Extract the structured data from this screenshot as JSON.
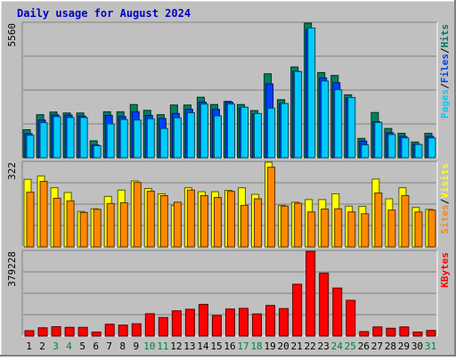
{
  "chart_data": {
    "type": "bar",
    "title": "Daily usage for August 2024",
    "categories": [
      "1",
      "2",
      "3",
      "4",
      "5",
      "6",
      "7",
      "8",
      "9",
      "10",
      "11",
      "12",
      "13",
      "14",
      "15",
      "16",
      "17",
      "18",
      "19",
      "20",
      "21",
      "22",
      "23",
      "24",
      "25",
      "26",
      "27",
      "28",
      "29",
      "30",
      "31"
    ],
    "weekend_days": [
      3,
      4,
      10,
      11,
      17,
      18,
      24,
      25,
      31
    ],
    "panels": [
      {
        "id": "hits_files_pages",
        "max_label": "5560",
        "ylim": [
          0,
          5560
        ],
        "side_labels": [
          {
            "text": "Pages",
            "color": "#00ccff"
          },
          {
            "text": "/",
            "color": "#000000"
          },
          {
            "text": "Files",
            "color": "#0044ee"
          },
          {
            "text": "/",
            "color": "#000000"
          },
          {
            "text": "Hits",
            "color": "#007766"
          }
        ],
        "series": [
          {
            "name": "Hits",
            "color": "#008060",
            "values": [
              1160,
              1780,
              1890,
              1850,
              1850,
              700,
              1900,
              1900,
              2200,
              1960,
              1780,
              2180,
              2180,
              2500,
              2200,
              2330,
              2200,
              1950,
              3470,
              2400,
              3750,
              5560,
              3520,
              3400,
              2600,
              800,
              1870,
              1210,
              1010,
              650,
              1010
            ]
          },
          {
            "name": "Files",
            "color": "#0040ff",
            "values": [
              1000,
              1560,
              1770,
              1760,
              1720,
              530,
              1750,
              1700,
              1900,
              1750,
              1620,
              1830,
              2000,
              2300,
              2000,
              2300,
              2050,
              1800,
              3050,
              2240,
              3570,
              5300,
              3300,
              3100,
              2470,
              690,
              1490,
              1030,
              880,
              560,
              880
            ]
          },
          {
            "name": "Pages",
            "color": "#00ccff",
            "values": [
              930,
              1450,
              1700,
              1660,
              1660,
              500,
              1400,
              1580,
              1560,
              1610,
              1210,
              1650,
              1860,
              2220,
              1730,
              2220,
              2090,
              1830,
              2050,
              2240,
              3560,
              5360,
              3170,
              2810,
              2490,
              530,
              1460,
              960,
              820,
              550,
              820
            ]
          }
        ]
      },
      {
        "id": "visits_sites",
        "max_label": "322",
        "ylim": [
          0,
          322
        ],
        "side_labels": [
          {
            "text": "Sites",
            "color": "#ff8800"
          },
          {
            "text": "/",
            "color": "#000000"
          },
          {
            "text": "Visits",
            "color": "#ffff00"
          }
        ],
        "series": [
          {
            "name": "Visits",
            "color": "#ffff00",
            "values": [
              257,
              270,
              225,
              207,
              135,
              145,
              192,
              216,
              251,
              222,
              202,
              158,
              225,
              210,
              210,
              215,
              225,
              200,
              322,
              158,
              170,
              180,
              180,
              202,
              155,
              154,
              258,
              183,
              225,
              150,
              143
            ]
          },
          {
            "name": "Sites",
            "color": "#ff8800",
            "values": [
              208,
              249,
              185,
              175,
              131,
              143,
              165,
              168,
              245,
              212,
              195,
              170,
              216,
              195,
              188,
              211,
              158,
              183,
              303,
              155,
              166,
              133,
              144,
              145,
              133,
              126,
              205,
              140,
              195,
              133,
              140
            ]
          }
        ]
      },
      {
        "id": "kbytes",
        "max_label": "379228",
        "ylim": [
          0,
          379228
        ],
        "side_labels": [
          {
            "text": "KBytes",
            "color": "#ff0000"
          }
        ],
        "series": [
          {
            "name": "KBytes",
            "color": "#ff0000",
            "values": [
              24000,
              37000,
              42000,
              39000,
              39000,
              18000,
              53000,
              49000,
              55000,
              100000,
              83000,
              113000,
              120000,
              142000,
              92000,
              121000,
              124000,
              99000,
              137000,
              123000,
              232000,
              379228,
              282000,
              215000,
              160000,
              20000,
              41000,
              35000,
              41000,
              18000,
              25000
            ]
          }
        ]
      }
    ]
  }
}
